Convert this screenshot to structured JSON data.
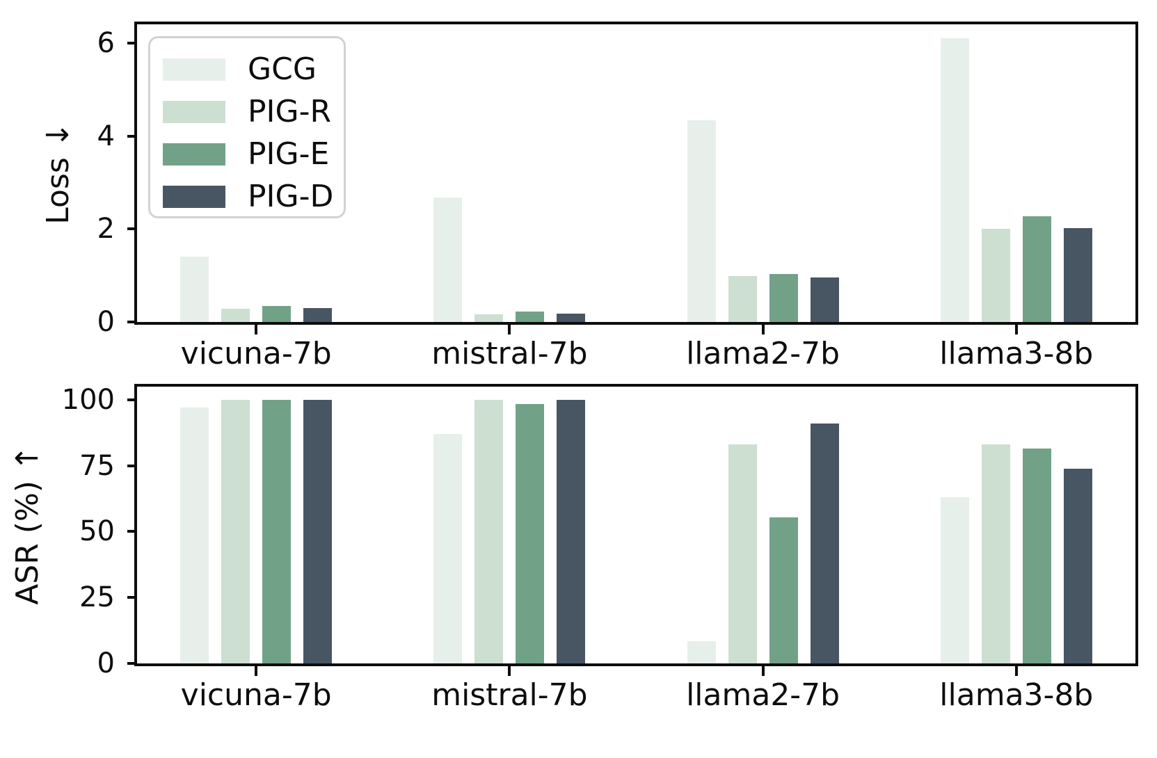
{
  "figure": {
    "background": "#ffffff",
    "spine_color": "#0d0d0d",
    "legend_border_color": "#d2d2d2"
  },
  "chart_data": [
    {
      "type": "bar",
      "panel": "loss",
      "title": "",
      "xlabel": "",
      "ylabel": "Loss ↓",
      "categories": [
        "vicuna-7b",
        "mistral-7b",
        "llama2-7b",
        "llama3-8b"
      ],
      "series": [
        {
          "name": "GCG",
          "color": "#e7efeb",
          "values": [
            1.4,
            2.67,
            4.33,
            6.1
          ]
        },
        {
          "name": "PIG-R",
          "color": "#ccdfd1",
          "values": [
            0.29,
            0.17,
            0.99,
            2.0
          ]
        },
        {
          "name": "PIG-E",
          "color": "#71a287",
          "values": [
            0.35,
            0.23,
            1.03,
            2.27
          ]
        },
        {
          "name": "PIG-D",
          "color": "#485663",
          "values": [
            0.3,
            0.18,
            0.96,
            2.02
          ]
        }
      ],
      "ylim": [
        0,
        6.4
      ],
      "yticks": [
        0,
        2,
        4,
        6
      ],
      "grid": false,
      "legend_position": "upper left"
    },
    {
      "type": "bar",
      "panel": "asr",
      "title": "",
      "xlabel": "",
      "ylabel": "ASR (%) ↑",
      "categories": [
        "vicuna-7b",
        "mistral-7b",
        "llama2-7b",
        "llama3-8b"
      ],
      "series": [
        {
          "name": "GCG",
          "color": "#e7efeb",
          "values": [
            97,
            87,
            8.5,
            63
          ]
        },
        {
          "name": "PIG-R",
          "color": "#ccdfd1",
          "values": [
            100,
            100,
            83,
            83
          ]
        },
        {
          "name": "PIG-E",
          "color": "#71a287",
          "values": [
            100,
            98.5,
            55.5,
            81.5
          ]
        },
        {
          "name": "PIG-D",
          "color": "#485663",
          "values": [
            100,
            100,
            91,
            74
          ]
        }
      ],
      "ylim": [
        0,
        105
      ],
      "yticks": [
        0,
        25,
        50,
        75,
        100
      ],
      "grid": false,
      "legend_position": "none"
    }
  ]
}
